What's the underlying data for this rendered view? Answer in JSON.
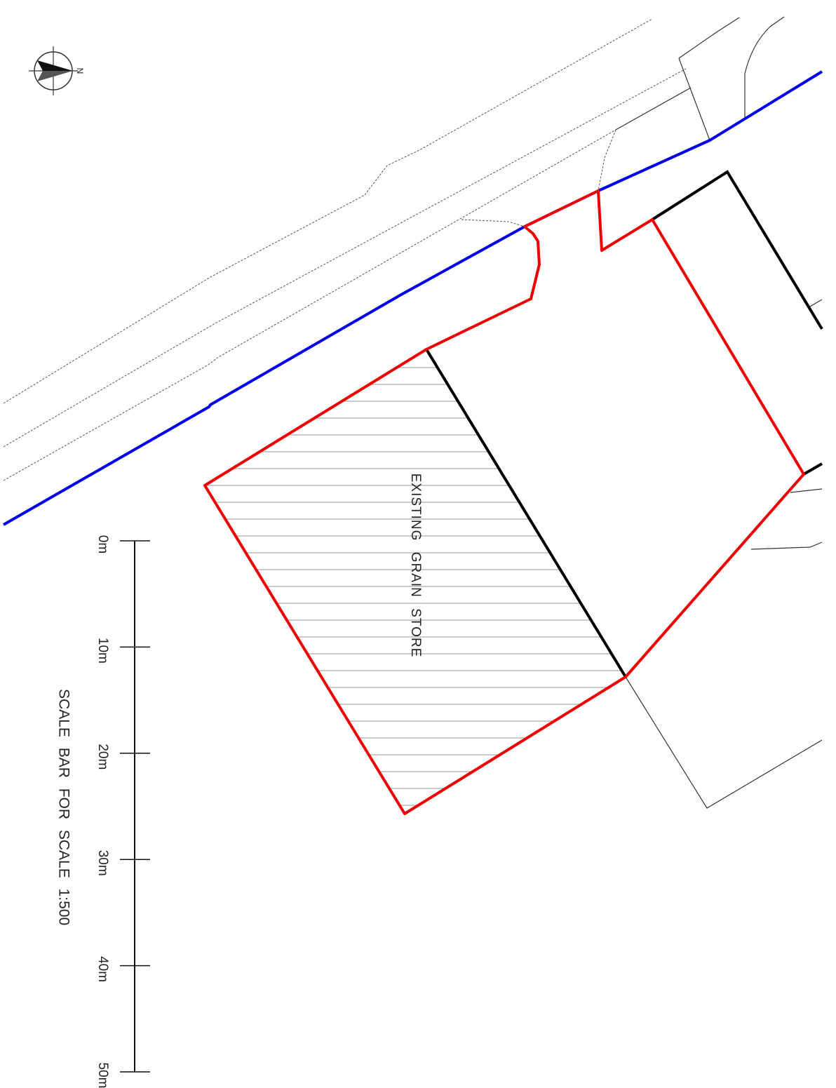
{
  "north_arrow": {
    "label": "N",
    "icon": "north-arrow-icon"
  },
  "building": {
    "label": "EXISTING GRAIN STORE"
  },
  "scale_bar": {
    "title": "SCALE BAR FOR SCALE 1:500",
    "ticks": [
      "0m",
      "10m",
      "20m",
      "30m",
      "40m",
      "50m"
    ]
  },
  "colors": {
    "site_boundary": "#ee0000",
    "ownership_boundary": "#0000ee",
    "building_edge": "#000000",
    "hatch": "#aaaaaa"
  }
}
